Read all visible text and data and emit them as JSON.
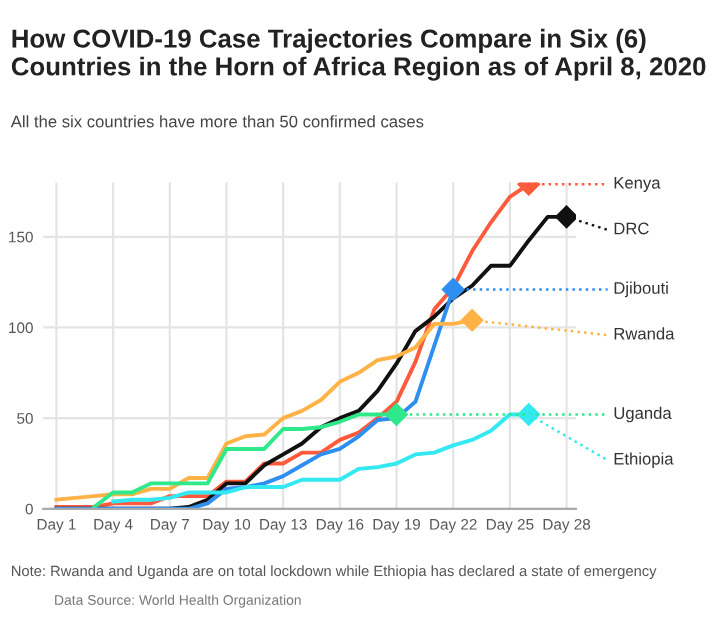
{
  "chart_data": {
    "type": "line",
    "title": "How COVID-19 Case Trajectories Compare in Six (6)\nCountries in the Horn of Africa Region as of April 8, 2020",
    "subtitle": "All the six countries have more than 50 confirmed cases",
    "annotations": [
      "Note: Rwanda and Uganda are on total lockdown while Ethiopia has declared a state of emergency",
      "Data Source: World Health Organization"
    ],
    "categories": [
      "Day 1",
      null,
      null,
      "Day 4",
      null,
      null,
      "Day 7",
      null,
      null,
      "Day 10",
      null,
      null,
      "Day 13",
      null,
      null,
      "Day 16",
      null,
      null,
      "Day 19",
      null,
      null,
      "Day 22",
      null,
      null,
      "Day 25",
      null,
      null,
      "Day 28"
    ],
    "series": [
      {
        "name": "Kenya",
        "color": "#ff5a3c",
        "values": [
          1,
          1,
          1,
          3,
          3,
          3,
          7,
          7,
          7,
          15,
          15,
          25,
          25,
          31,
          31,
          38,
          42,
          50,
          59,
          81,
          110,
          122,
          142,
          158,
          172,
          179,
          null,
          null
        ]
      },
      {
        "name": "DRC",
        "color": "#111111",
        "values": [
          0,
          0,
          0,
          0,
          0,
          0,
          0,
          1,
          5,
          14,
          14,
          24,
          30,
          36,
          45,
          50,
          54,
          65,
          80,
          98,
          106,
          116,
          123,
          134,
          134,
          148,
          161,
          161
        ]
      },
      {
        "name": "Djibouti",
        "color": "#2e8ff0",
        "values": [
          0,
          0,
          0,
          0,
          0,
          0,
          0,
          0,
          3,
          11,
          12,
          14,
          18,
          24,
          30,
          33,
          40,
          49,
          50,
          59,
          90,
          121,
          null,
          null,
          null,
          null,
          null,
          null
        ]
      },
      {
        "name": "Rwanda",
        "color": "#ffb347",
        "values": [
          5,
          6,
          7,
          8,
          8,
          11,
          11,
          17,
          17,
          36,
          40,
          41,
          50,
          54,
          60,
          70,
          75,
          82,
          84,
          89,
          102,
          102,
          104,
          null,
          null,
          null,
          null,
          null
        ]
      },
      {
        "name": "Uganda",
        "color": "#2ee88a",
        "values": [
          null,
          null,
          1,
          9,
          9,
          14,
          14,
          14,
          14,
          33,
          33,
          33,
          44,
          44,
          45,
          48,
          52,
          52,
          52,
          null,
          null,
          null,
          null,
          null,
          null,
          null,
          null,
          null
        ]
      },
      {
        "name": "Ethiopia",
        "color": "#33e8f0",
        "values": [
          null,
          null,
          null,
          4,
          5,
          5,
          6,
          9,
          9,
          9,
          12,
          12,
          12,
          16,
          16,
          16,
          22,
          23,
          25,
          30,
          31,
          35,
          38,
          43,
          52,
          52,
          null,
          null
        ]
      }
    ],
    "ylim": [
      0,
      180
    ],
    "yticks": [
      0,
      50,
      100,
      150
    ],
    "grid": true,
    "legend": "right",
    "line_style": "solid"
  }
}
